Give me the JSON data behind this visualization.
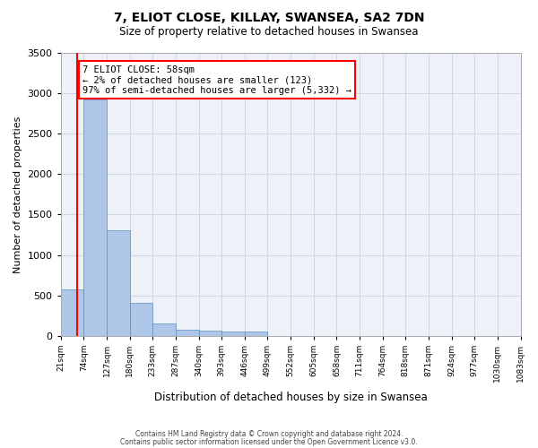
{
  "title": "7, ELIOT CLOSE, KILLAY, SWANSEA, SA2 7DN",
  "subtitle": "Size of property relative to detached houses in Swansea",
  "xlabel": "Distribution of detached houses by size in Swansea",
  "ylabel": "Number of detached properties",
  "footer_line1": "Contains HM Land Registry data © Crown copyright and database right 2024.",
  "footer_line2": "Contains public sector information licensed under the Open Government Licence v3.0.",
  "bin_labels": [
    "21sqm",
    "74sqm",
    "127sqm",
    "180sqm",
    "233sqm",
    "287sqm",
    "340sqm",
    "393sqm",
    "446sqm",
    "499sqm",
    "552sqm",
    "605sqm",
    "658sqm",
    "711sqm",
    "764sqm",
    "818sqm",
    "871sqm",
    "924sqm",
    "977sqm",
    "1030sqm",
    "1083sqm"
  ],
  "bar_values": [
    570,
    2920,
    1310,
    405,
    155,
    80,
    60,
    55,
    50,
    0,
    0,
    0,
    0,
    0,
    0,
    0,
    0,
    0,
    0,
    0
  ],
  "bar_color": "#aec6e8",
  "bar_edge_color": "#5a8fc0",
  "grid_color": "#d0d8e8",
  "bg_color": "#eef2f8",
  "annotation_text": "7 ELIOT CLOSE: 58sqm\n← 2% of detached houses are smaller (123)\n97% of semi-detached houses are larger (5,332) →",
  "annotation_box_color": "white",
  "annotation_box_edge": "red",
  "marker_line_color": "red",
  "ylim": [
    0,
    3500
  ],
  "yticks": [
    0,
    500,
    1000,
    1500,
    2000,
    2500,
    3000,
    3500
  ]
}
